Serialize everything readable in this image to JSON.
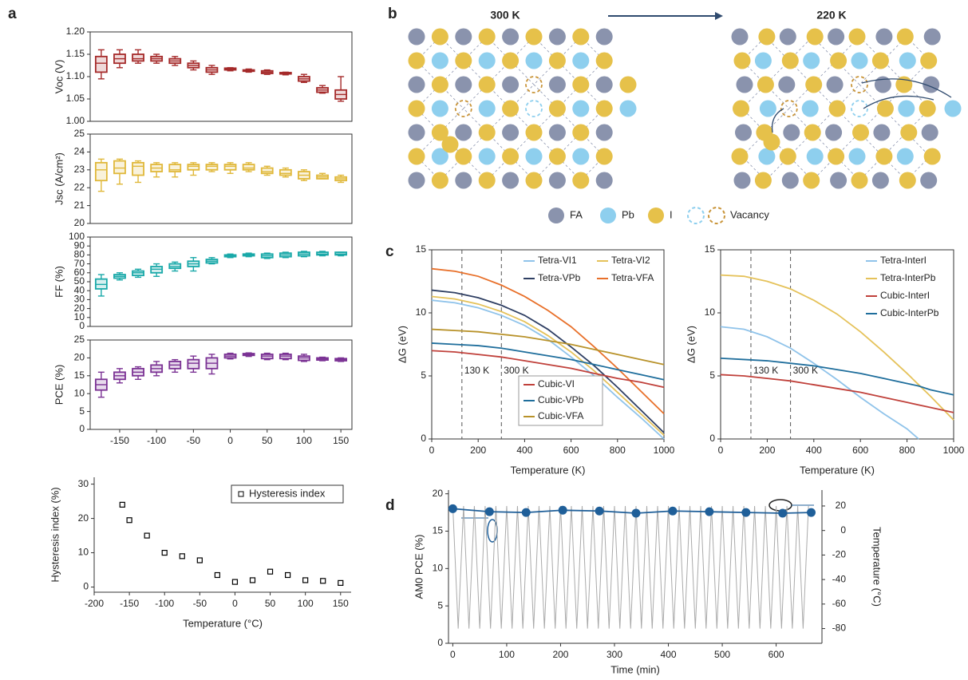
{
  "panel_labels": [
    "a",
    "b",
    "c",
    "d"
  ],
  "diagram": {
    "labels": [
      "300 K",
      "220 K"
    ],
    "legend": [
      "FA",
      "Pb",
      "I",
      "Vacancy"
    ]
  },
  "chart_data": [
    {
      "type": "box",
      "ylabel": "Voc (V)",
      "color": "#a52a2a",
      "x": [
        -175,
        -150,
        -125,
        -100,
        -75,
        -50,
        -25,
        0,
        25,
        50,
        75,
        100,
        125,
        150
      ],
      "values": [
        1.13,
        1.14,
        1.14,
        1.14,
        1.135,
        1.125,
        1.115,
        1.117,
        1.113,
        1.11,
        1.107,
        1.095,
        1.07,
        1.06
      ],
      "q1": [
        1.11,
        1.13,
        1.135,
        1.135,
        1.13,
        1.12,
        1.11,
        1.115,
        1.112,
        1.107,
        1.106,
        1.09,
        1.065,
        1.05
      ],
      "q3": [
        1.145,
        1.15,
        1.15,
        1.145,
        1.14,
        1.13,
        1.12,
        1.119,
        1.115,
        1.113,
        1.109,
        1.1,
        1.075,
        1.07
      ],
      "min": [
        1.095,
        1.12,
        1.13,
        1.13,
        1.125,
        1.115,
        1.105,
        1.113,
        1.11,
        1.105,
        1.104,
        1.087,
        1.063,
        1.045
      ],
      "max": [
        1.16,
        1.16,
        1.16,
        1.15,
        1.145,
        1.135,
        1.125,
        1.12,
        1.117,
        1.115,
        1.11,
        1.105,
        1.08,
        1.1
      ],
      "xlim": [
        -190,
        165
      ],
      "ylim": [
        1.0,
        1.2
      ],
      "yticks": [
        {
          "value": 1.0,
          "label": "1.00"
        },
        1.05,
        {
          "value": 1.1,
          "label": "1.10"
        },
        1.15,
        {
          "value": 1.2,
          "label": "1.20"
        }
      ]
    },
    {
      "type": "box",
      "ylabel": "Jsc (A/cm²)",
      "color": "#e0b83a",
      "x": [
        -175,
        -150,
        -125,
        -100,
        -75,
        -50,
        -25,
        0,
        25,
        50,
        75,
        100,
        125,
        150
      ],
      "values": [
        23.0,
        23.1,
        23.2,
        23.1,
        23.0,
        23.2,
        23.2,
        23.2,
        23.1,
        22.9,
        22.8,
        22.7,
        22.6,
        22.5
      ],
      "q1": [
        22.4,
        22.8,
        22.7,
        22.9,
        22.9,
        23.0,
        23.0,
        23.0,
        23.0,
        22.8,
        22.7,
        22.5,
        22.5,
        22.4
      ],
      "q3": [
        23.4,
        23.5,
        23.4,
        23.3,
        23.3,
        23.3,
        23.3,
        23.3,
        23.3,
        23.1,
        23.0,
        22.9,
        22.7,
        22.6
      ],
      "min": [
        21.8,
        22.2,
        22.3,
        22.6,
        22.6,
        22.7,
        22.9,
        22.8,
        22.9,
        22.7,
        22.6,
        22.4,
        22.5,
        22.3
      ],
      "max": [
        23.6,
        23.6,
        23.5,
        23.4,
        23.4,
        23.4,
        23.4,
        23.4,
        23.4,
        23.2,
        23.1,
        23.0,
        22.8,
        22.7
      ],
      "xlim": [
        -190,
        165
      ],
      "ylim": [
        20,
        25
      ],
      "yticks": [
        20,
        21,
        22,
        23,
        24,
        25
      ]
    },
    {
      "type": "box",
      "ylabel": "FF (%)",
      "color": "#1aa9a9",
      "x": [
        -175,
        -150,
        -125,
        -100,
        -75,
        -50,
        -25,
        0,
        25,
        50,
        75,
        100,
        125,
        150
      ],
      "values": [
        47,
        56,
        60,
        64,
        67,
        70,
        73,
        79,
        80,
        79,
        80,
        81,
        81,
        81
      ],
      "q1": [
        42,
        54,
        57,
        60,
        65,
        67,
        71,
        78,
        79,
        77,
        78,
        79,
        80,
        80
      ],
      "q3": [
        53,
        58,
        62,
        67,
        70,
        73,
        75,
        80,
        81,
        81,
        82,
        83,
        83,
        83
      ],
      "min": [
        34,
        52,
        55,
        56,
        62,
        62,
        70,
        77,
        78,
        76,
        77,
        78,
        79,
        79
      ],
      "max": [
        58,
        60,
        64,
        70,
        72,
        77,
        77,
        81,
        82,
        82,
        83,
        84,
        84,
        83
      ],
      "xlim": [
        -190,
        165
      ],
      "ylim": [
        0,
        100
      ],
      "yticks": [
        0,
        10,
        20,
        30,
        40,
        50,
        60,
        70,
        80,
        90,
        100
      ]
    },
    {
      "type": "box",
      "ylabel": "PCE (%)",
      "color": "#7b3294",
      "x": [
        -175,
        -150,
        -125,
        -100,
        -75,
        -50,
        -25,
        0,
        25,
        50,
        75,
        100,
        125,
        150
      ],
      "values": [
        12.5,
        15,
        16,
        17,
        18,
        18.5,
        18.5,
        20.5,
        21,
        20.5,
        20.5,
        20,
        19.7,
        19.5
      ],
      "q1": [
        11,
        14,
        15,
        16,
        17,
        17,
        17,
        20,
        20.7,
        19.8,
        19.8,
        19.3,
        19.4,
        19.2
      ],
      "q3": [
        14,
        16,
        17,
        18,
        19,
        19.5,
        20,
        21,
        21.2,
        21,
        21,
        20.5,
        20,
        19.8
      ],
      "min": [
        9,
        13,
        14,
        15,
        16,
        16,
        15.5,
        19.7,
        20.4,
        19.5,
        19.5,
        19,
        19.2,
        19
      ],
      "max": [
        16,
        17,
        17.5,
        19,
        19.5,
        20.5,
        21,
        21.3,
        21.4,
        21.3,
        21.3,
        21,
        20.2,
        20
      ],
      "xlim": [
        -190,
        165
      ],
      "ylim": [
        0,
        25
      ],
      "yticks": [
        0,
        5,
        10,
        15,
        20,
        25
      ],
      "xticks": [
        -150,
        -100,
        -50,
        0,
        50,
        100,
        150
      ]
    },
    {
      "type": "scatter",
      "ylabel": "Hysteresis index (%)",
      "xlabel": "Temperature (°C)",
      "series": [
        {
          "name": "Hysteresis index",
          "color": "#000000",
          "x": [
            -160,
            -150,
            -125,
            -100,
            -75,
            -50,
            -25,
            0,
            25,
            50,
            75,
            100,
            125,
            150
          ],
          "values": [
            24,
            19.5,
            15,
            10,
            9,
            7.8,
            3.5,
            1.5,
            2,
            4.5,
            3.5,
            2,
            1.8,
            1.2
          ]
        }
      ],
      "xlim": [
        -200,
        165
      ],
      "ylim": [
        -1.5,
        32
      ],
      "xticks": [
        -200,
        -150,
        -100,
        -50,
        0,
        50,
        100,
        150
      ],
      "yticks": [
        0,
        10,
        20,
        30
      ],
      "legend": "upper right"
    },
    {
      "type": "line",
      "ylabel": "ΔG (eV)",
      "xlabel": "Temperature (K)",
      "x": [
        0,
        100,
        200,
        300,
        400,
        500,
        600,
        700,
        800,
        900,
        1000
      ],
      "series": [
        {
          "name": "Tetra-VI1",
          "color": "#8fc3ea",
          "values": [
            11.0,
            10.8,
            10.4,
            9.8,
            9.0,
            7.9,
            6.5,
            5.0,
            3.3,
            1.7,
            0
          ]
        },
        {
          "name": "Tetra-VI2",
          "color": "#e5c25a",
          "values": [
            11.3,
            11.1,
            10.7,
            10.1,
            9.3,
            8.2,
            6.9,
            5.4,
            3.7,
            2.0,
            0.3
          ]
        },
        {
          "name": "Tetra-VPb",
          "color": "#2f3f63",
          "values": [
            11.8,
            11.6,
            11.2,
            10.6,
            9.8,
            8.7,
            7.3,
            5.8,
            4.1,
            2.3,
            0.5
          ]
        },
        {
          "name": "Tetra-VFA",
          "color": "#e8702a",
          "values": [
            13.5,
            13.3,
            12.9,
            12.2,
            11.3,
            10.2,
            8.9,
            7.3,
            5.6,
            3.8,
            2.0
          ]
        },
        {
          "name": "Cubic-VI",
          "color": "#c0413b",
          "values": [
            7.0,
            6.9,
            6.7,
            6.5,
            6.2,
            5.9,
            5.6,
            5.2,
            4.8,
            4.5,
            4.1
          ]
        },
        {
          "name": "Cubic-VPb",
          "color": "#1f6e9c",
          "values": [
            7.6,
            7.5,
            7.4,
            7.2,
            6.9,
            6.6,
            6.3,
            5.9,
            5.5,
            5.1,
            4.7
          ]
        },
        {
          "name": "Cubic-VFA",
          "color": "#b8922a",
          "values": [
            8.7,
            8.6,
            8.5,
            8.3,
            8.1,
            7.8,
            7.5,
            7.1,
            6.7,
            6.3,
            5.9
          ]
        }
      ],
      "annotations": [
        {
          "x": 130,
          "label": "130 K"
        },
        {
          "x": 300,
          "label": "300 K"
        }
      ],
      "xlim": [
        0,
        1000
      ],
      "ylim": [
        0,
        15
      ],
      "xticks": [
        0,
        200,
        400,
        600,
        800,
        1000
      ],
      "yticks": [
        0,
        5,
        10,
        15
      ]
    },
    {
      "type": "line",
      "ylabel": "ΔG (eV)",
      "xlabel": "Temperature (K)",
      "x": [
        0,
        100,
        200,
        300,
        400,
        500,
        600,
        700,
        800,
        850,
        900,
        1000
      ],
      "series": [
        {
          "name": "Tetra-InterI",
          "color": "#8fc3ea",
          "values": [
            8.9,
            8.7,
            8.1,
            7.2,
            6.0,
            4.7,
            3.3,
            2.0,
            0.8,
            0,
            null,
            null
          ]
        },
        {
          "name": "Tetra-InterPb",
          "color": "#e5c25a",
          "values": [
            13.0,
            12.9,
            12.5,
            11.9,
            11.0,
            9.9,
            8.5,
            6.9,
            5.2,
            4.3,
            3.4,
            1.5
          ]
        },
        {
          "name": "Cubic-InterI",
          "color": "#c0413b",
          "values": [
            5.1,
            5.0,
            4.8,
            4.6,
            4.3,
            4.0,
            3.7,
            3.3,
            2.9,
            2.7,
            2.5,
            2.1
          ]
        },
        {
          "name": "Cubic-InterPb",
          "color": "#1f6e9c",
          "values": [
            6.4,
            6.3,
            6.2,
            6.0,
            5.8,
            5.5,
            5.2,
            4.8,
            4.4,
            4.2,
            3.9,
            3.5
          ]
        }
      ],
      "annotations": [
        {
          "x": 130,
          "label": "130 K"
        },
        {
          "x": 300,
          "label": "300 K"
        }
      ],
      "xlim": [
        0,
        1000
      ],
      "ylim": [
        0,
        15
      ],
      "xticks": [
        0,
        200,
        400,
        600,
        800,
        1000
      ],
      "yticks": [
        0,
        5,
        10,
        15
      ]
    },
    {
      "type": "line",
      "ylabel": "AM0 PCE (%)",
      "xlabel": "Time (min)",
      "y2label": "Temperature (°C)",
      "series": [
        {
          "color": "#aaaaaa",
          "axis": "y2",
          "x": [
            0,
            10,
            20,
            30,
            40,
            50,
            60,
            70,
            80,
            90,
            100,
            110,
            120,
            130,
            140,
            150,
            160,
            170,
            180,
            190,
            200,
            210,
            220,
            230,
            240,
            250,
            260,
            270,
            280,
            290,
            300,
            310,
            320,
            330,
            340,
            350,
            360,
            370,
            380,
            390,
            400,
            410,
            420,
            430,
            440,
            450,
            460,
            470,
            480,
            490,
            500,
            510,
            520,
            530,
            540,
            550,
            560,
            570,
            580,
            590,
            600,
            610,
            620,
            630,
            640,
            650,
            660
          ],
          "values": [
            20,
            -80,
            20,
            -80,
            20,
            -80,
            20,
            -80,
            20,
            -80,
            20,
            -80,
            20,
            -80,
            20,
            -80,
            20,
            -80,
            20,
            -80,
            20,
            -80,
            20,
            -80,
            20,
            -80,
            20,
            -80,
            20,
            -80,
            20,
            -80,
            20,
            -80,
            20,
            -80,
            20,
            -80,
            20,
            -80,
            20,
            -80,
            20,
            -80,
            20,
            -80,
            20,
            -80,
            20,
            -80,
            20,
            -80,
            20,
            -80,
            20,
            -80,
            20,
            -80,
            20,
            -80,
            20,
            -80,
            20,
            -80,
            20,
            -80,
            20
          ]
        },
        {
          "color": "#1f5f99",
          "marker": "circle",
          "x": [
            0,
            68,
            136,
            204,
            272,
            340,
            408,
            476,
            544,
            612,
            665
          ],
          "values": [
            18,
            17.6,
            17.5,
            17.8,
            17.7,
            17.4,
            17.7,
            17.6,
            17.5,
            17.4,
            17.5
          ]
        }
      ],
      "xlim": [
        -8,
        685
      ],
      "ylim": [
        0,
        20.5
      ],
      "y2lim": [
        -92,
        33
      ],
      "xticks": [
        0,
        100,
        200,
        300,
        400,
        500,
        600
      ],
      "yticks": [
        0,
        5,
        10,
        15,
        20
      ],
      "y2ticks": [
        20,
        0,
        -20,
        -40,
        -60,
        -80
      ]
    }
  ]
}
